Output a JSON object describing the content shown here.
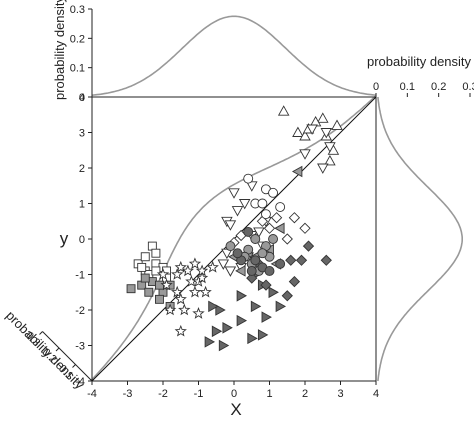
{
  "chart_data": {
    "type": "scatter",
    "title": "",
    "xlabel": "X",
    "ylabel": "y",
    "xlim": [
      -4,
      4
    ],
    "ylim": [
      -4,
      4
    ],
    "x_ticks": [
      "-4",
      "-3",
      "-2",
      "-1",
      "0",
      "1",
      "2",
      "3",
      "4"
    ],
    "y_ticks": [
      "-4",
      "-3",
      "-2",
      "-1",
      "0",
      "1",
      "2",
      "3",
      "4"
    ],
    "marginal_x": {
      "label": "probability density",
      "ticks": [
        "0",
        "0.1",
        "0.2",
        "0.3"
      ],
      "range": [
        0,
        0.3
      ],
      "curve": "normal density of X (mean 0, sd 1.45)"
    },
    "marginal_y": {
      "label": "probability density",
      "ticks": [
        "0",
        "0.1",
        "0.2",
        "0.3"
      ],
      "range": [
        0,
        0.3
      ],
      "curve": "normal density of y (mean 0, sd 1.45)"
    },
    "marginal_diag": {
      "label": "probability density",
      "ticks": [
        "0.3",
        "0.2",
        "0.1"
      ]
    },
    "reference_line": "y = x",
    "grid": false,
    "legend": "none",
    "colors": {
      "line": "#111111",
      "curve": "#999999",
      "dark": "#666666",
      "mid": "#999999",
      "light": "#cccccc",
      "open": "#ffffff"
    },
    "series": [
      {
        "marker": "triangle-up",
        "fill": "open",
        "points": [
          [
            1.4,
            3.6
          ],
          [
            2.5,
            3.4
          ],
          [
            2.7,
            2.2
          ],
          [
            2.8,
            2.5
          ],
          [
            2.6,
            2.9
          ],
          [
            2.9,
            3.2
          ],
          [
            2.3,
            3.3
          ],
          [
            1.8,
            3.0
          ],
          [
            2.0,
            2.9
          ],
          [
            2.1,
            3.1
          ]
        ]
      },
      {
        "marker": "triangle-down",
        "fill": "open",
        "points": [
          [
            0.0,
            1.3
          ],
          [
            0.5,
            1.5
          ],
          [
            0.1,
            0.8
          ],
          [
            0.3,
            1.0
          ],
          [
            -0.2,
            0.5
          ],
          [
            -0.1,
            0.4
          ],
          [
            0.5,
            0.1
          ],
          [
            0.7,
            0.2
          ],
          [
            0.4,
            -0.5
          ],
          [
            -0.2,
            -0.4
          ],
          [
            -0.3,
            -0.7
          ],
          [
            2.2,
            3.1
          ],
          [
            2.0,
            2.4
          ],
          [
            2.6,
            3.0
          ],
          [
            2.7,
            2.6
          ],
          [
            2.5,
            2.0
          ],
          [
            0.9,
            0.5
          ],
          [
            0.8,
            -0.2
          ],
          [
            -0.1,
            -0.9
          ],
          [
            0.2,
            -0.8
          ]
        ]
      },
      {
        "marker": "triangle-right",
        "fill": "dark",
        "points": [
          [
            0.2,
            -1.6
          ],
          [
            0.6,
            -1.9
          ],
          [
            1.3,
            -1.9
          ],
          [
            -0.4,
            -2.0
          ],
          [
            1.1,
            -1.5
          ],
          [
            0.8,
            -1.3
          ],
          [
            0.9,
            -2.2
          ],
          [
            -0.6,
            -1.9
          ],
          [
            -0.2,
            -2.5
          ],
          [
            0.2,
            -2.3
          ],
          [
            0.8,
            -2.7
          ],
          [
            0.5,
            -2.8
          ],
          [
            -0.5,
            -2.6
          ],
          [
            -0.7,
            -2.9
          ],
          [
            -0.3,
            -3.0
          ],
          [
            0.6,
            -1.0
          ]
        ]
      },
      {
        "marker": "triangle-left",
        "fill": "mid",
        "points": [
          [
            0.2,
            -0.9
          ],
          [
            0.0,
            -0.5
          ],
          [
            0.4,
            -0.4
          ],
          [
            0.6,
            -0.5
          ],
          [
            1.0,
            -0.3
          ],
          [
            1.3,
            0.3
          ],
          [
            1.8,
            1.9
          ],
          [
            1.2,
            -0.7
          ]
        ]
      },
      {
        "marker": "diamond",
        "fill": "dark",
        "points": [
          [
            0.9,
            -1.3
          ],
          [
            1.5,
            -1.6
          ],
          [
            0.5,
            -1.1
          ],
          [
            1.6,
            -0.6
          ],
          [
            1.9,
            -0.6
          ],
          [
            2.6,
            -0.6
          ],
          [
            2.1,
            -0.2
          ],
          [
            0.7,
            -0.7
          ],
          [
            1.7,
            -1.2
          ]
        ]
      },
      {
        "marker": "diamond",
        "fill": "open",
        "points": [
          [
            0.8,
            0.5
          ],
          [
            1.2,
            0.6
          ],
          [
            0.2,
            0.1
          ],
          [
            1.0,
            0.3
          ],
          [
            1.7,
            0.6
          ],
          [
            0.0,
            -0.1
          ],
          [
            1.5,
            0.0
          ],
          [
            2.0,
            0.3
          ]
        ]
      },
      {
        "marker": "circle",
        "fill": "open",
        "points": [
          [
            0.4,
            1.7
          ],
          [
            0.9,
            1.4
          ],
          [
            1.3,
            0.9
          ],
          [
            1.1,
            1.3
          ],
          [
            0.6,
            1.0
          ],
          [
            0.9,
            0.7
          ],
          [
            0.8,
            1.0
          ]
        ]
      },
      {
        "marker": "circle",
        "fill": "mid",
        "points": [
          [
            -0.1,
            -0.2
          ],
          [
            0.6,
            0.0
          ],
          [
            0.9,
            -0.2
          ],
          [
            0.4,
            -0.3
          ],
          [
            0.3,
            -0.5
          ],
          [
            0.5,
            -0.7
          ],
          [
            0.7,
            -0.9
          ],
          [
            1.1,
            0.0
          ],
          [
            1.0,
            -0.5
          ],
          [
            0.8,
            -0.4
          ]
        ]
      },
      {
        "marker": "circle",
        "fill": "dark",
        "points": [
          [
            0.2,
            -0.6
          ],
          [
            0.8,
            -0.8
          ],
          [
            1.3,
            -0.7
          ],
          [
            0.6,
            -0.6
          ],
          [
            1.0,
            -0.9
          ],
          [
            0.5,
            -0.9
          ],
          [
            0.4,
            0.2
          ],
          [
            0.1,
            -0.4
          ]
        ]
      },
      {
        "marker": "square",
        "fill": "open",
        "points": [
          [
            -2.3,
            -0.2
          ],
          [
            -2.7,
            -0.7
          ],
          [
            -2.5,
            -0.9
          ],
          [
            -2.2,
            -0.7
          ],
          [
            -2.0,
            -0.8
          ],
          [
            -1.9,
            -0.9
          ],
          [
            -2.4,
            -1.0
          ],
          [
            -2.6,
            -0.8
          ],
          [
            -2.2,
            -0.4
          ],
          [
            -1.9,
            -1.1
          ],
          [
            -2.2,
            -0.9
          ],
          [
            -2.5,
            -0.5
          ]
        ]
      },
      {
        "marker": "square",
        "fill": "mid",
        "points": [
          [
            -2.9,
            -1.4
          ],
          [
            -2.6,
            -1.3
          ],
          [
            -2.3,
            -1.2
          ],
          [
            -2.0,
            -1.5
          ],
          [
            -1.8,
            -1.3
          ],
          [
            -2.1,
            -1.3
          ],
          [
            -2.4,
            -1.5
          ],
          [
            -1.8,
            -1.9
          ],
          [
            -2.1,
            -1.7
          ],
          [
            -2.5,
            -1.1
          ]
        ]
      },
      {
        "marker": "star",
        "fill": "open",
        "points": [
          [
            -2.0,
            -1.0
          ],
          [
            -1.6,
            -1.0
          ],
          [
            -1.5,
            -0.8
          ],
          [
            -1.3,
            -0.9
          ],
          [
            -1.2,
            -1.2
          ],
          [
            -1.0,
            -1.2
          ],
          [
            -0.9,
            -0.9
          ],
          [
            -1.6,
            -1.5
          ],
          [
            -1.5,
            -1.7
          ],
          [
            -1.8,
            -2.0
          ],
          [
            -1.4,
            -2.0
          ],
          [
            -1.0,
            -2.1
          ],
          [
            -0.8,
            -1.5
          ],
          [
            -0.9,
            -1.1
          ],
          [
            -1.5,
            -2.6
          ],
          [
            -1.9,
            -1.3
          ],
          [
            -1.1,
            -1.5
          ],
          [
            -0.6,
            -0.8
          ],
          [
            -1.1,
            -0.7
          ]
        ]
      }
    ]
  }
}
